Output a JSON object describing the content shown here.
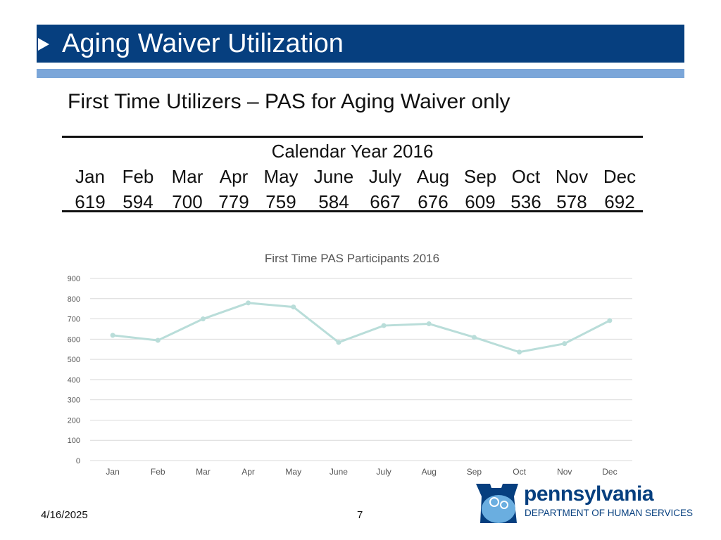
{
  "header": {
    "title": "Aging Waiver Utilization"
  },
  "subtitle": "First Time Utilizers – PAS for Aging Waiver only",
  "table": {
    "caption": "Calendar Year 2016",
    "months": [
      "Jan",
      "Feb",
      "Mar",
      "Apr",
      "May",
      "June",
      "July",
      "Aug",
      "Sep",
      "Oct",
      "Nov",
      "Dec"
    ],
    "values": [
      "619",
      "594",
      "700",
      "779",
      "759",
      "584",
      "667",
      "676",
      "609",
      "536",
      "578",
      "692"
    ]
  },
  "chart_data": {
    "type": "line",
    "title": "First Time PAS Participants 2016",
    "categories": [
      "Jan",
      "Feb",
      "Mar",
      "Apr",
      "May",
      "June",
      "July",
      "Aug",
      "Sep",
      "Oct",
      "Nov",
      "Dec"
    ],
    "series": [
      {
        "values": [
          619,
          594,
          700,
          779,
          759,
          584,
          667,
          676,
          609,
          536,
          578,
          692
        ]
      }
    ],
    "ylim": [
      0,
      900
    ],
    "yticks": [
      0,
      100,
      200,
      300,
      400,
      500,
      600,
      700,
      800,
      900
    ],
    "grid": true,
    "line_color": "#b9ddd9"
  },
  "footer": {
    "date": "4/16/2025",
    "page": "7"
  },
  "logo": {
    "name": "pennsylvania",
    "dept": "DEPARTMENT OF HUMAN SERVICES"
  },
  "colors": {
    "header": "#063f7f",
    "band": "#7ba6d9"
  }
}
